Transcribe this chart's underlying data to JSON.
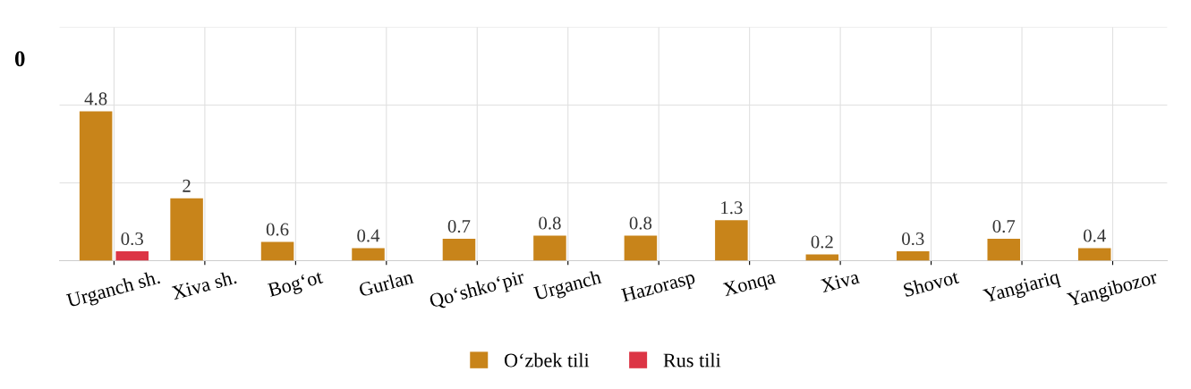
{
  "chart_data": {
    "type": "bar",
    "categories": [
      "Urganch sh.",
      "Xiva sh.",
      "Bog‘ot",
      "Gurlan",
      "Qo‘shko‘pir",
      "Urganch",
      "Hazorasp",
      "Xonqa",
      "Xiva",
      "Shovot",
      "Yangiariq",
      "Yangibozor"
    ],
    "series": [
      {
        "name": "O‘zbek tili",
        "color": "#c8841a",
        "values": [
          4.8,
          2,
          0.6,
          0.4,
          0.7,
          0.8,
          0.8,
          1.3,
          0.2,
          0.3,
          0.7,
          0.4
        ]
      },
      {
        "name": "Rus tili",
        "color": "#dc3545",
        "values": [
          0.3,
          null,
          null,
          null,
          null,
          null,
          null,
          null,
          null,
          null,
          null,
          null
        ]
      }
    ],
    "ylim": [
      0,
      7.5
    ],
    "yticks": [
      {
        "value": 0,
        "label": null
      },
      {
        "value": 2.5,
        "label": null
      },
      {
        "value": 5,
        "label": null
      },
      {
        "value": 7.5,
        "label": null
      }
    ],
    "tick_labels": "x",
    "annotations": [
      "0"
    ],
    "data_labels": true,
    "grid": true,
    "legend": "bottom"
  }
}
